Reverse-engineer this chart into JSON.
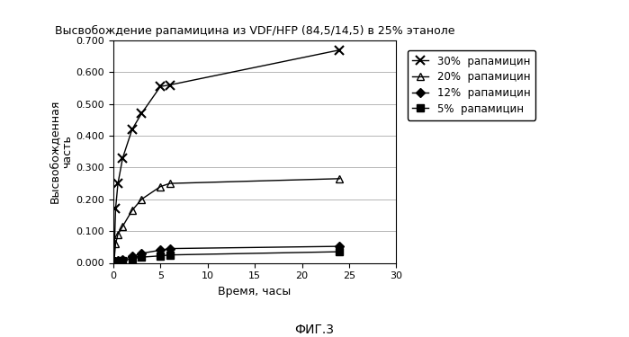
{
  "title": "Высвобождение рапамицина из VDF/HFP (84,5/14,5) в 25% этаноле",
  "xlabel": "Время, часы",
  "ylabel": "Высвобожденная\nчасть",
  "fig_label": "ФИГ.3",
  "xlim": [
    0,
    30
  ],
  "ylim": [
    0.0,
    0.7
  ],
  "xticks": [
    0,
    5,
    10,
    15,
    20,
    25,
    30
  ],
  "yticks": [
    0.0,
    0.1,
    0.2,
    0.3,
    0.4,
    0.5,
    0.6,
    0.7
  ],
  "series": [
    {
      "label": "30%  рапамицин",
      "marker": "x",
      "color": "#000000",
      "linestyle": "-",
      "x": [
        0.083,
        0.25,
        0.5,
        1.0,
        2.0,
        3.0,
        5.0,
        6.0,
        24.0
      ],
      "y": [
        0.005,
        0.17,
        0.25,
        0.33,
        0.42,
        0.47,
        0.555,
        0.56,
        0.67
      ]
    },
    {
      "label": "20%  рапамицин",
      "marker": "^",
      "color": "#000000",
      "linestyle": "-",
      "x": [
        0.083,
        0.25,
        0.5,
        1.0,
        2.0,
        3.0,
        5.0,
        6.0,
        24.0
      ],
      "y": [
        0.003,
        0.06,
        0.09,
        0.115,
        0.165,
        0.2,
        0.24,
        0.25,
        0.265
      ]
    },
    {
      "label": "12%  рапамицин",
      "marker": "D",
      "color": "#000000",
      "linestyle": "-",
      "x": [
        0.083,
        0.25,
        0.5,
        1.0,
        2.0,
        3.0,
        5.0,
        6.0,
        24.0
      ],
      "y": [
        0.001,
        0.005,
        0.008,
        0.01,
        0.02,
        0.03,
        0.04,
        0.045,
        0.052
      ]
    },
    {
      "label": "5%  рапамицин",
      "marker": "s",
      "color": "#000000",
      "linestyle": "-",
      "x": [
        0.083,
        0.25,
        0.5,
        1.0,
        2.0,
        3.0,
        5.0,
        6.0,
        24.0
      ],
      "y": [
        0.001,
        0.003,
        0.005,
        0.007,
        0.013,
        0.018,
        0.022,
        0.025,
        0.035
      ]
    }
  ],
  "background_color": "#ffffff",
  "title_fontsize": 9,
  "label_fontsize": 9,
  "tick_fontsize": 8,
  "legend_fontsize": 8.5
}
